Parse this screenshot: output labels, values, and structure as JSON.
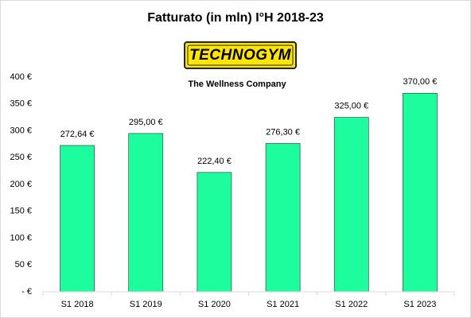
{
  "chart_data": {
    "type": "bar",
    "title": "Fatturato (in mln) I°H 2018-23",
    "logo": "TECHNOGYM",
    "logo_subtitle": "The Wellness Company",
    "categories": [
      "S1 2018",
      "S1 2019",
      "S1 2020",
      "S1 2021",
      "S1 2022",
      "S1 2023"
    ],
    "values": [
      272.64,
      295.0,
      222.4,
      276.3,
      325.0,
      370.0
    ],
    "value_labels": [
      "272,64 €",
      "295,00 €",
      "222,40 €",
      "276,30 €",
      "325,00 €",
      "370,00 €"
    ],
    "color": "#1dfd9e",
    "ylim": [
      0,
      400
    ],
    "yticks": [
      {
        "value": 0,
        "label": "- €"
      },
      {
        "value": 50,
        "label": "50 €"
      },
      {
        "value": 100,
        "label": "100 €"
      },
      {
        "value": 150,
        "label": "150 €"
      },
      {
        "value": 200,
        "label": "200 €"
      },
      {
        "value": 250,
        "label": "250 €"
      },
      {
        "value": 300,
        "label": "300 €"
      },
      {
        "value": 350,
        "label": "350 €"
      },
      {
        "value": 400,
        "label": "400 €"
      }
    ],
    "grid": false
  }
}
